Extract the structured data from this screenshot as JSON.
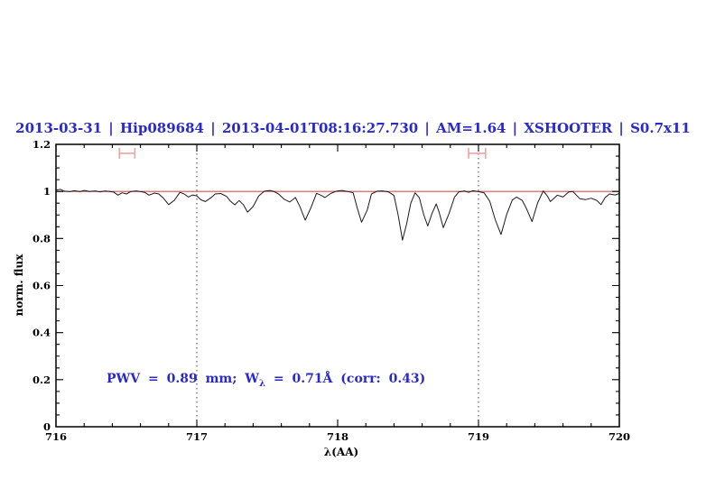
{
  "header": {
    "title": "2013-03-31 | Hip089684 | 2013-04-01T08:16:27.730 | AM=1.64 | XSHOOTER | S0.7x11",
    "title_color": "#2929cc"
  },
  "annotation": {
    "prefix": "PWV = 0.89 mm; W",
    "sub": "λ",
    "suffix": " = 0.71Å (corr: 0.43)",
    "color": "#2929cc"
  },
  "axes": {
    "x": {
      "label": "λ(AA)",
      "min": 716,
      "max": 720,
      "major_ticks": [
        716,
        717,
        718,
        719,
        720
      ],
      "tick_labels": [
        "716",
        "717",
        "718",
        "719",
        "720"
      ],
      "minor_step": 0.2
    },
    "y": {
      "label": "norm. flux",
      "min": 0,
      "max": 1.2,
      "major_ticks": [
        0,
        0.2,
        0.4,
        0.6,
        0.8,
        1,
        1.2
      ],
      "tick_labels": [
        "0",
        "0.2",
        "0.4",
        "0.6",
        "0.8",
        "1",
        "1.2"
      ],
      "minor_step": 0.05
    }
  },
  "chart_data": {
    "type": "line",
    "title": "2013-03-31 | Hip089684 | 2013-04-01T08:16:27.730 | AM=1.64 | XSHOOTER | S0.7x11",
    "xlabel": "λ(AA)",
    "ylabel": "norm. flux",
    "xlim": [
      716,
      720
    ],
    "ylim": [
      0,
      1.2
    ],
    "grid": false,
    "colors": {
      "spectrum": "#1a1a1a",
      "continuum": "#d85050",
      "band_marker": "#f2a2a2",
      "guide": "#444444"
    },
    "series": [
      {
        "name": "spectrum",
        "x": [
          716.0,
          716.03,
          716.06,
          716.1,
          716.13,
          716.17,
          716.2,
          716.24,
          716.28,
          716.31,
          716.35,
          716.38,
          716.41,
          716.44,
          716.47,
          716.5,
          716.53,
          716.57,
          716.6,
          716.63,
          716.66,
          716.7,
          716.73,
          716.76,
          716.8,
          716.84,
          716.88,
          716.91,
          716.94,
          716.97,
          717.0,
          717.03,
          717.06,
          717.1,
          717.13,
          717.17,
          717.21,
          717.24,
          717.27,
          717.3,
          717.33,
          717.36,
          717.4,
          717.44,
          717.48,
          717.52,
          717.55,
          717.58,
          717.62,
          717.66,
          717.7,
          717.73,
          717.77,
          717.81,
          717.85,
          717.88,
          717.91,
          717.95,
          717.99,
          718.03,
          718.07,
          718.11,
          718.14,
          718.17,
          718.21,
          718.24,
          718.28,
          718.32,
          718.36,
          718.4,
          718.43,
          718.46,
          718.49,
          718.52,
          718.55,
          718.58,
          718.61,
          718.64,
          718.67,
          718.7,
          718.72,
          718.75,
          718.79,
          718.83,
          718.86,
          718.9,
          718.93,
          718.96,
          719.0,
          719.04,
          719.08,
          719.12,
          719.16,
          719.2,
          719.24,
          719.27,
          719.31,
          719.34,
          719.38,
          719.42,
          719.46,
          719.49,
          719.51,
          719.56,
          719.6,
          719.64,
          719.67,
          719.72,
          719.76,
          719.8,
          719.84,
          719.87,
          719.9,
          719.93,
          719.97,
          720.0
        ],
        "y": [
          1.005,
          1.009,
          1.001,
          0.999,
          1.003,
          0.999,
          1.004,
          1.0,
          1.002,
          0.998,
          1.002,
          1.0,
          0.997,
          0.984,
          0.994,
          0.989,
          0.999,
          1.002,
          0.999,
          0.996,
          0.984,
          0.993,
          0.989,
          0.973,
          0.944,
          0.962,
          0.996,
          0.989,
          0.976,
          0.985,
          0.981,
          0.964,
          0.957,
          0.973,
          0.989,
          0.991,
          0.979,
          0.958,
          0.943,
          0.961,
          0.944,
          0.912,
          0.936,
          0.981,
          1.001,
          1.004,
          0.999,
          0.989,
          0.967,
          0.955,
          0.974,
          0.938,
          0.878,
          0.931,
          0.992,
          0.984,
          0.974,
          0.991,
          1.001,
          1.004,
          1.0,
          0.994,
          0.928,
          0.869,
          0.921,
          0.989,
          1.001,
          1.002,
          0.998,
          0.983,
          0.898,
          0.793,
          0.862,
          0.951,
          0.994,
          0.973,
          0.903,
          0.853,
          0.906,
          0.947,
          0.913,
          0.846,
          0.904,
          0.976,
          0.998,
          1.002,
          0.996,
          1.003,
          0.999,
          0.994,
          0.958,
          0.878,
          0.817,
          0.902,
          0.963,
          0.976,
          0.962,
          0.928,
          0.872,
          0.951,
          1.002,
          0.98,
          0.957,
          0.984,
          0.976,
          0.997,
          1.0,
          0.969,
          0.965,
          0.971,
          0.962,
          0.944,
          0.974,
          0.989,
          0.985,
          0.991
        ]
      },
      {
        "name": "continuum-reference",
        "x": [
          716,
          720
        ],
        "y": [
          1.0,
          1.0
        ]
      }
    ],
    "reference_lines": {
      "horizontal": [
        {
          "y": 1.0
        }
      ],
      "vertical_dotted": [
        717,
        719
      ]
    },
    "range_markers": [
      {
        "x1": 716.45,
        "x2": 716.56,
        "y": 1.162
      },
      {
        "x1": 718.93,
        "x2": 719.05,
        "y": 1.162
      }
    ]
  }
}
